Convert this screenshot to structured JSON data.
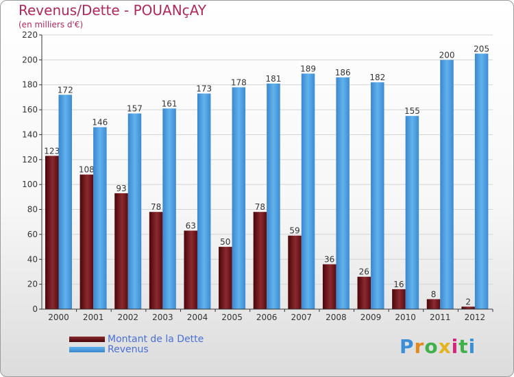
{
  "chart_data": {
    "type": "bar",
    "title": "Revenus/Dette - POUANçAY",
    "subtitle": "(en milliers d'€)",
    "categories": [
      "2000",
      "2001",
      "2002",
      "2003",
      "2004",
      "2005",
      "2006",
      "2007",
      "2008",
      "2009",
      "2010",
      "2011",
      "2012"
    ],
    "series": [
      {
        "name": "Montant de la Dette",
        "color": "#6e1018",
        "values": [
          123,
          108,
          93,
          78,
          63,
          50,
          78,
          59,
          36,
          26,
          16,
          8,
          2
        ]
      },
      {
        "name": "Revenus",
        "color": "#4ea2e2",
        "values": [
          172,
          146,
          157,
          161,
          173,
          178,
          181,
          189,
          186,
          182,
          155,
          200,
          205
        ]
      }
    ],
    "ylim": [
      0,
      220
    ],
    "yticks": [
      0,
      20,
      40,
      60,
      80,
      100,
      120,
      140,
      160,
      180,
      200,
      220
    ],
    "grid": true,
    "legend_position": "bottom-left"
  },
  "brand": {
    "letters": [
      "P",
      "r",
      "o",
      "x",
      "i",
      "t",
      "i"
    ],
    "colors": [
      "#3a8fd8",
      "#e38a1e",
      "#3fb04a",
      "#e3b41e",
      "#d4257a",
      "#3fb04a",
      "#3a8fd8"
    ]
  }
}
